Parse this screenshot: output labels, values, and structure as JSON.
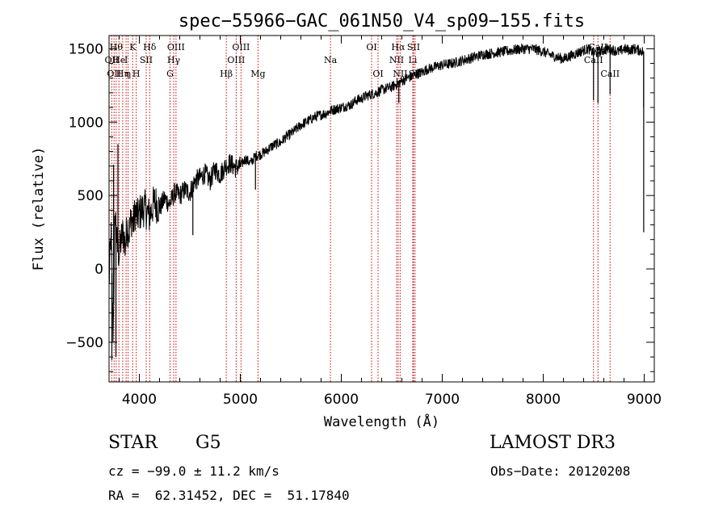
{
  "chart_data": {
    "type": "line",
    "title": "spec−55966−GAC_061N50_V4_sp09−155.fits",
    "xlabel": "Wavelength (Å)",
    "ylabel": "Flux (relative)",
    "xlim": [
      3700,
      9100
    ],
    "ylim": [
      -770,
      1590
    ],
    "xticks": [
      4000,
      5000,
      6000,
      7000,
      8000,
      9000
    ],
    "xtick_labels": [
      "4000",
      "5000",
      "6000",
      "7000",
      "8000",
      "9000"
    ],
    "yticks": [
      -500,
      0,
      500,
      1000,
      1500
    ],
    "ytick_labels": [
      "−500",
      "0",
      "500",
      "1000",
      "1500"
    ],
    "grid": false,
    "line_color": "#000000",
    "marker_color": "#cc0000",
    "series": [
      {
        "name": "Flux",
        "x": [
          3700,
          3720,
          3740,
          3760,
          3780,
          3800,
          3820,
          3840,
          3860,
          3880,
          3900,
          3920,
          3940,
          3960,
          3980,
          4000,
          4050,
          4100,
          4150,
          4200,
          4250,
          4300,
          4350,
          4400,
          4450,
          4500,
          4550,
          4600,
          4650,
          4700,
          4750,
          4800,
          4850,
          4900,
          4950,
          5000,
          5050,
          5100,
          5150,
          5200,
          5250,
          5300,
          5350,
          5400,
          5450,
          5500,
          5550,
          5600,
          5650,
          5700,
          5750,
          5800,
          5850,
          5900,
          5950,
          6000,
          6050,
          6100,
          6150,
          6200,
          6250,
          6300,
          6350,
          6400,
          6450,
          6500,
          6550,
          6600,
          6650,
          6700,
          6750,
          6800,
          6850,
          6900,
          6950,
          7000,
          7100,
          7200,
          7300,
          7400,
          7500,
          7600,
          7700,
          7800,
          7900,
          8000,
          8100,
          8200,
          8300,
          8400,
          8450,
          8500,
          8550,
          8600,
          8650,
          8700,
          8750,
          8800,
          8850,
          8900,
          8950,
          8990
        ],
        "y": [
          -100,
          250,
          -450,
          400,
          150,
          100,
          200,
          250,
          150,
          300,
          250,
          350,
          300,
          400,
          350,
          380,
          420,
          360,
          460,
          410,
          480,
          440,
          520,
          500,
          540,
          520,
          600,
          620,
          650,
          600,
          680,
          640,
          700,
          720,
          690,
          700,
          750,
          720,
          770,
          780,
          800,
          830,
          850,
          860,
          900,
          920,
          950,
          980,
          1000,
          1020,
          1040,
          1050,
          1060,
          1080,
          1090,
          1100,
          1110,
          1120,
          1150,
          1160,
          1180,
          1190,
          1200,
          1220,
          1230,
          1240,
          1260,
          1280,
          1300,
          1310,
          1330,
          1340,
          1360,
          1370,
          1380,
          1390,
          1400,
          1420,
          1440,
          1460,
          1470,
          1480,
          1490,
          1500,
          1500,
          1480,
          1450,
          1430,
          1460,
          1490,
          1500,
          1470,
          1480,
          1490,
          1500,
          1490,
          1480,
          1500,
          1490,
          1500,
          1490,
          1480
        ]
      }
    ],
    "spikes": [
      {
        "x": 3728,
        "y": -620
      },
      {
        "x": 3745,
        "y": 710
      },
      {
        "x": 3768,
        "y": -600
      },
      {
        "x": 3788,
        "y": 850
      },
      {
        "x": 4530,
        "y": 230
      },
      {
        "x": 5150,
        "y": 540
      },
      {
        "x": 5890,
        "y": 1060
      },
      {
        "x": 6570,
        "y": 1130
      },
      {
        "x": 8498,
        "y": 1150
      },
      {
        "x": 8542,
        "y": 1130
      },
      {
        "x": 8662,
        "y": 1190
      },
      {
        "x": 8995,
        "y": 1100
      },
      {
        "x": 8995,
        "y": 250
      }
    ],
    "line_markers": [
      {
        "x": 3727,
        "row": 1,
        "label": "OII"
      },
      {
        "x": 3750,
        "row": 2,
        "label": "OII"
      },
      {
        "x": 3771,
        "row": 0,
        "label": "Hθ"
      },
      {
        "x": 3798,
        "row": 1,
        "label": "He"
      },
      {
        "x": 3835,
        "row": 2,
        "label": "Hη"
      },
      {
        "x": 3869,
        "row": 1,
        "label": "I"
      },
      {
        "x": 3889,
        "row": 2,
        "label": "η"
      },
      {
        "x": 3934,
        "row": 0,
        "label": "K"
      },
      {
        "x": 3969,
        "row": 2,
        "label": "H"
      },
      {
        "x": 4068,
        "row": 1,
        "label": "SII"
      },
      {
        "x": 4102,
        "row": 0,
        "label": "Hδ"
      },
      {
        "x": 4304,
        "row": 2,
        "label": "G"
      },
      {
        "x": 4340,
        "row": 1,
        "label": "Hγ"
      },
      {
        "x": 4363,
        "row": 0,
        "label": "OIII"
      },
      {
        "x": 4861,
        "row": 2,
        "label": "Hβ"
      },
      {
        "x": 4959,
        "row": 1,
        "label": "OIII"
      },
      {
        "x": 5007,
        "row": 0,
        "label": "OIII"
      },
      {
        "x": 5175,
        "row": 2,
        "label": "Mg"
      },
      {
        "x": 5893,
        "row": 1,
        "label": "Na"
      },
      {
        "x": 6300,
        "row": 0,
        "label": "OI"
      },
      {
        "x": 6364,
        "row": 2,
        "label": "OI"
      },
      {
        "x": 6548,
        "row": 1,
        "label": "NII"
      },
      {
        "x": 6563,
        "row": 0,
        "label": "Hα"
      },
      {
        "x": 6583,
        "row": 2,
        "label": "NII"
      },
      {
        "x": 6708,
        "row": 1,
        "label": "Li"
      },
      {
        "x": 6716,
        "row": 0,
        "label": "SII"
      },
      {
        "x": 6731,
        "row": 2,
        "label": "SII"
      },
      {
        "x": 8498,
        "row": 1,
        "label": "CaII"
      },
      {
        "x": 8542,
        "row": 0,
        "label": "CaII"
      },
      {
        "x": 8662,
        "row": 2,
        "label": "CaII"
      }
    ]
  },
  "info": {
    "object_class": "STAR",
    "subclass": "G5",
    "survey": "LAMOST DR3",
    "redshift_text": "cz = −99.0 ± 11.2 km/s",
    "obs_date_text": "Obs−Date: 20120208",
    "coords_text": "RA =  62.31452, DEC =  51.17840"
  }
}
